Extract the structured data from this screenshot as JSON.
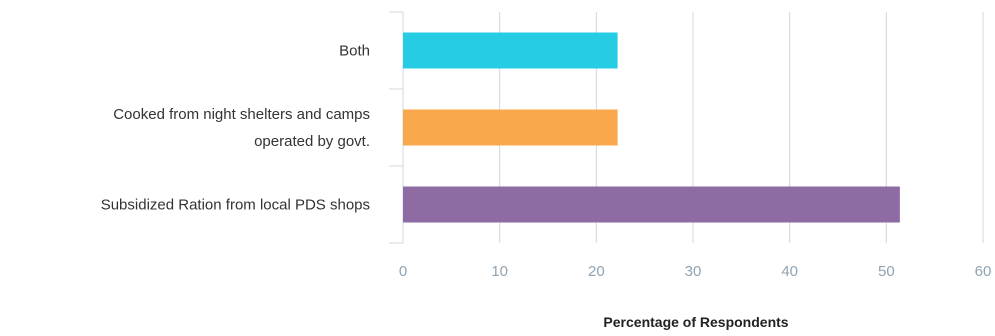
{
  "chart_data": {
    "type": "bar",
    "orientation": "horizontal",
    "title": "",
    "xlabel": "Percentage of Respondents",
    "ylabel": "",
    "xlim": [
      0,
      60
    ],
    "xticks": [
      0,
      10,
      20,
      30,
      40,
      50,
      60
    ],
    "grid": true,
    "categories": [
      [
        "Both"
      ],
      [
        "Cooked from night shelters and camps",
        "operated by govt."
      ],
      [
        "Subsidized Ration from local PDS shops"
      ]
    ],
    "values": [
      22.2,
      22.2,
      51.4
    ],
    "colors": [
      "#26cbe4",
      "#f9a94b",
      "#8e6ba3"
    ]
  }
}
